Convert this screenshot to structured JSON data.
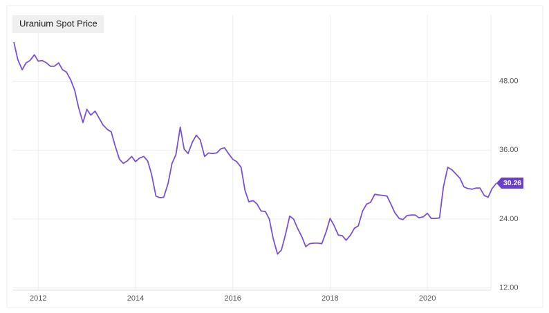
{
  "chart_data": {
    "type": "line",
    "title": "Uranium Spot Price",
    "x": [
      2011.5,
      2011.58,
      2011.67,
      2011.75,
      2011.83,
      2011.92,
      2012.0,
      2012.08,
      2012.17,
      2012.25,
      2012.33,
      2012.42,
      2012.5,
      2012.58,
      2012.67,
      2012.75,
      2012.83,
      2012.92,
      2013.0,
      2013.08,
      2013.17,
      2013.25,
      2013.33,
      2013.42,
      2013.5,
      2013.58,
      2013.67,
      2013.75,
      2013.83,
      2013.92,
      2014.0,
      2014.08,
      2014.17,
      2014.25,
      2014.33,
      2014.42,
      2014.5,
      2014.58,
      2014.67,
      2014.75,
      2014.83,
      2014.92,
      2015.0,
      2015.08,
      2015.17,
      2015.25,
      2015.33,
      2015.42,
      2015.5,
      2015.58,
      2015.67,
      2015.75,
      2015.83,
      2015.92,
      2016.0,
      2016.08,
      2016.17,
      2016.25,
      2016.33,
      2016.42,
      2016.5,
      2016.58,
      2016.67,
      2016.75,
      2016.83,
      2016.92,
      2017.0,
      2017.08,
      2017.17,
      2017.25,
      2017.33,
      2017.42,
      2017.5,
      2017.58,
      2017.67,
      2017.75,
      2017.83,
      2017.92,
      2018.0,
      2018.08,
      2018.17,
      2018.25,
      2018.33,
      2018.42,
      2018.5,
      2018.58,
      2018.67,
      2018.75,
      2018.83,
      2018.92,
      2019.0,
      2019.08,
      2019.17,
      2019.25,
      2019.33,
      2019.42,
      2019.5,
      2019.58,
      2019.67,
      2019.75,
      2019.83,
      2019.92,
      2020.0,
      2020.08,
      2020.17,
      2020.25,
      2020.33,
      2020.42,
      2020.5,
      2020.58,
      2020.67,
      2020.75,
      2020.83,
      2020.92,
      2021.0,
      2021.08,
      2021.17,
      2021.25,
      2021.33,
      2021.42
    ],
    "series": [
      {
        "name": "Uranium Spot Price",
        "color": "#7a4fd8",
        "values": [
          54.8,
          51.8,
          50.0,
          51.2,
          51.6,
          52.6,
          51.5,
          51.6,
          51.2,
          50.6,
          50.6,
          51.2,
          50.0,
          49.6,
          48.2,
          46.4,
          43.4,
          40.8,
          43.1,
          42.1,
          42.8,
          41.6,
          40.4,
          39.6,
          39.2,
          36.8,
          34.4,
          33.7,
          34.1,
          34.9,
          34.0,
          34.6,
          34.9,
          34.1,
          31.8,
          28.0,
          27.7,
          27.8,
          30.2,
          33.7,
          35.2,
          40.0,
          36.2,
          35.4,
          37.4,
          38.6,
          37.8,
          34.9,
          35.5,
          35.4,
          35.5,
          36.2,
          36.4,
          35.3,
          34.4,
          34.0,
          33.0,
          29.0,
          27.0,
          27.2,
          26.6,
          25.4,
          25.3,
          24.0,
          20.6,
          17.9,
          18.6,
          21.2,
          24.5,
          24.0,
          22.4,
          20.9,
          19.2,
          19.7,
          19.8,
          19.8,
          19.7,
          21.8,
          24.1,
          22.9,
          21.2,
          21.1,
          20.3,
          21.2,
          22.4,
          22.8,
          25.4,
          26.6,
          26.9,
          28.3,
          28.2,
          28.1,
          28.0,
          26.6,
          25.1,
          24.1,
          23.9,
          24.6,
          24.7,
          24.7,
          24.2,
          24.4,
          25.0,
          24.1,
          24.1,
          24.2,
          29.6,
          33.0,
          32.6,
          31.9,
          31.1,
          29.6,
          29.3,
          29.2,
          29.4,
          29.4,
          28.1,
          27.8,
          29.3,
          30.26
        ]
      }
    ],
    "xlim": [
      2011.47,
      2021.42
    ],
    "xticks": [
      2012,
      2014,
      2016,
      2018,
      2020
    ],
    "ylim": [
      11.6,
      59.5
    ],
    "yticks": [
      {
        "value": 12,
        "label": "12.00"
      },
      {
        "value": 24,
        "label": "24.00"
      },
      {
        "value": 36,
        "label": "36.00"
      },
      {
        "value": 48,
        "label": "48.00"
      }
    ],
    "grid": true
  }
}
